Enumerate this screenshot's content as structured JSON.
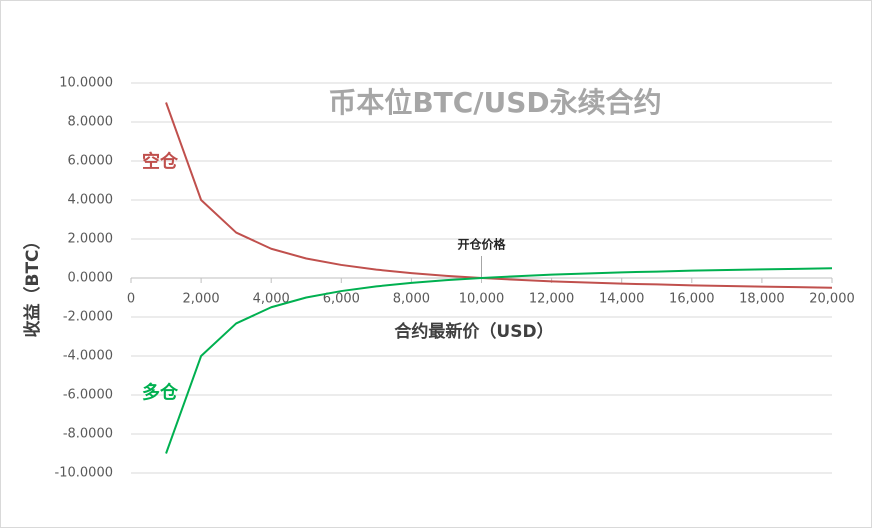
{
  "chart_data": {
    "type": "line",
    "title": "币本位BTC/USD永续合约",
    "x_label": "合约最新价（USD）",
    "y_label": "收益（BTC）",
    "x": [
      1000,
      2000,
      3000,
      4000,
      5000,
      6000,
      7000,
      8000,
      9000,
      10000,
      11000,
      12000,
      13000,
      14000,
      15000,
      16000,
      17000,
      18000,
      19000,
      20000
    ],
    "series": [
      {
        "name": "空仓",
        "color": "#c0504d",
        "values": [
          9,
          4,
          2.33,
          1.5,
          1,
          0.67,
          0.43,
          0.25,
          0.11,
          0,
          -0.09,
          -0.17,
          -0.23,
          -0.29,
          -0.33,
          -0.38,
          -0.41,
          -0.44,
          -0.47,
          -0.5
        ]
      },
      {
        "name": "多仓",
        "color": "#00b050",
        "values": [
          -9,
          -4,
          -2.33,
          -1.5,
          -1,
          -0.67,
          -0.43,
          -0.25,
          -0.11,
          0,
          0.09,
          0.17,
          0.23,
          0.29,
          0.33,
          0.38,
          0.41,
          0.44,
          0.47,
          0.5
        ]
      }
    ],
    "annotations": [
      {
        "text": "开仓价格",
        "x": 10000
      }
    ],
    "xlim": [
      0,
      20000
    ],
    "xticks": [
      0,
      {
        "value": 2000,
        "label": "2,000"
      },
      {
        "value": 4000,
        "label": "4,000"
      },
      {
        "value": 6000,
        "label": "6,000"
      },
      {
        "value": 8000,
        "label": "8,000"
      },
      {
        "value": 10000,
        "label": "10,000"
      },
      {
        "value": 12000,
        "label": "12,000"
      },
      {
        "value": 14000,
        "label": "14,000"
      },
      {
        "value": 16000,
        "label": "16,000"
      },
      {
        "value": 18000,
        "label": "18,000"
      },
      {
        "value": 20000,
        "label": "20,000"
      }
    ],
    "ylim": [
      -10,
      10
    ],
    "yticks": [
      {
        "value": -10,
        "label": "-10.0000"
      },
      {
        "value": -8,
        "label": "-8.0000"
      },
      {
        "value": -6,
        "label": "-6.0000"
      },
      {
        "value": -4,
        "label": "-4.0000"
      },
      {
        "value": -2,
        "label": "-2.0000"
      },
      {
        "value": 0,
        "label": "0.0000"
      },
      {
        "value": 2,
        "label": "2.0000"
      },
      {
        "value": 4,
        "label": "4.0000"
      },
      {
        "value": 6,
        "label": "6.0000"
      },
      {
        "value": 8,
        "label": "8.0000"
      },
      {
        "value": 10,
        "label": "10.0000"
      }
    ],
    "grid": true
  }
}
